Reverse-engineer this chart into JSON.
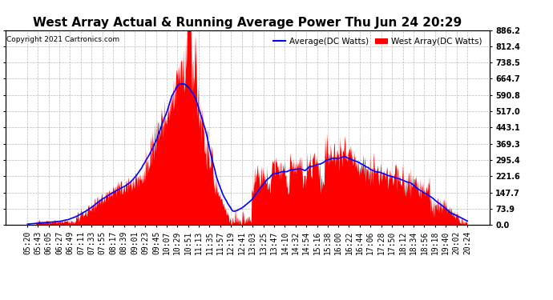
{
  "title": "West Array Actual & Running Average Power Thu Jun 24 20:29",
  "copyright": "Copyright 2021 Cartronics.com",
  "legend_avg": "Average(DC Watts)",
  "legend_west": "West Array(DC Watts)",
  "legend_avg_color": "blue",
  "legend_west_color": "red",
  "ylabel_right": [
    "886.2",
    "812.4",
    "738.5",
    "664.7",
    "590.8",
    "517.0",
    "443.1",
    "369.3",
    "295.4",
    "221.6",
    "147.7",
    "73.9",
    "0.0"
  ],
  "ymax": 886.2,
  "ymin": 0.0,
  "background_color": "#ffffff",
  "plot_bg_color": "#ffffff",
  "grid_color": "#aaaaaa",
  "bar_color": "red",
  "avg_line_color": "blue",
  "title_fontsize": 11,
  "tick_fontsize": 7,
  "x_labels": [
    "05:20",
    "05:43",
    "06:05",
    "06:27",
    "06:49",
    "07:11",
    "07:33",
    "07:55",
    "08:17",
    "08:39",
    "09:01",
    "09:23",
    "09:45",
    "10:07",
    "10:29",
    "10:51",
    "11:13",
    "11:35",
    "11:57",
    "12:19",
    "12:41",
    "13:03",
    "13:25",
    "13:47",
    "14:10",
    "14:32",
    "14:54",
    "15:16",
    "15:38",
    "16:00",
    "16:22",
    "16:44",
    "17:06",
    "17:28",
    "17:50",
    "18:12",
    "18:34",
    "18:56",
    "19:18",
    "19:40",
    "20:02",
    "20:24"
  ]
}
